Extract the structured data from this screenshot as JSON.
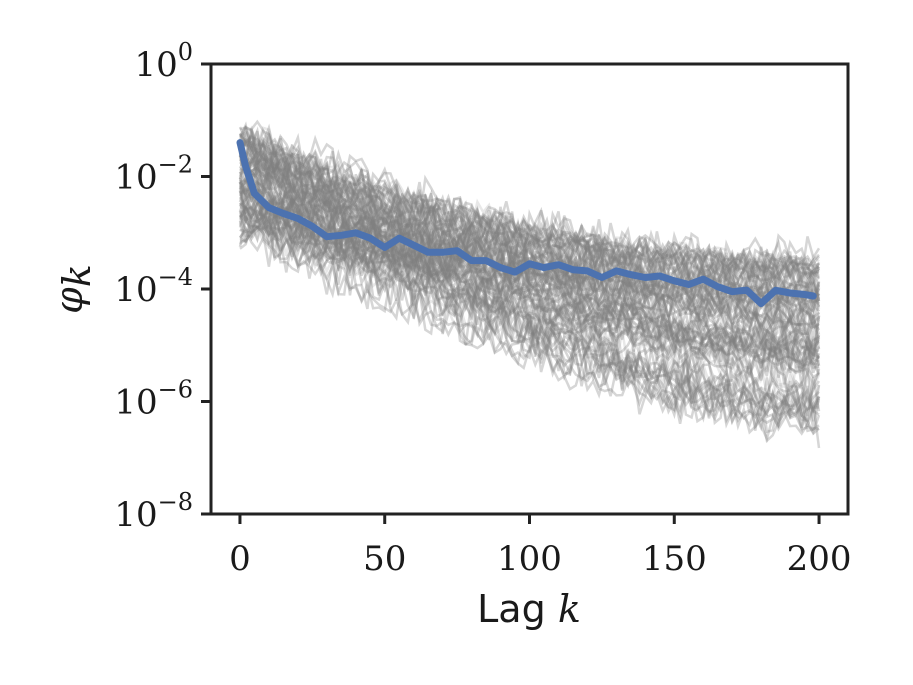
{
  "chart_data": {
    "type": "line",
    "title": "",
    "xlabel": "Lag k",
    "ylabel": "φk",
    "xlim": [
      -10,
      210
    ],
    "ylim_log10": [
      -8,
      0
    ],
    "yscale": "log",
    "x_ticks": [
      0,
      50,
      100,
      150,
      200
    ],
    "x_tick_labels": [
      "0",
      "50",
      "100",
      "150",
      "200"
    ],
    "y_ticks_log10": [
      0,
      -2,
      -4,
      -6,
      -8
    ],
    "y_tick_labels": [
      {
        "base": "10",
        "exp": "0"
      },
      {
        "base": "10",
        "exp": "−2"
      },
      {
        "base": "10",
        "exp": "−4"
      },
      {
        "base": "10",
        "exp": "−6"
      },
      {
        "base": "10",
        "exp": "−8"
      }
    ],
    "grid": false,
    "colors": {
      "mean_line": "#4c72b0",
      "sample_lines": "#808080",
      "axes": "#222222"
    },
    "series": [
      {
        "role": "mean",
        "x": [
          0,
          2,
          5,
          10,
          15,
          20,
          25,
          30,
          35,
          40,
          45,
          50,
          55,
          60,
          65,
          70,
          75,
          80,
          85,
          90,
          95,
          100,
          105,
          110,
          115,
          120,
          125,
          130,
          135,
          140,
          145,
          150,
          155,
          160,
          165,
          170,
          175,
          180,
          185,
          190,
          195,
          198
        ],
        "y": [
          0.04,
          0.015,
          0.005,
          0.0028,
          0.0022,
          0.0018,
          0.0013,
          0.00085,
          0.0009,
          0.001,
          0.0008,
          0.00055,
          0.0008,
          0.0006,
          0.00045,
          0.00045,
          0.00048,
          0.00032,
          0.00032,
          0.00024,
          0.0002,
          0.00028,
          0.00024,
          0.00027,
          0.00022,
          0.00021,
          0.00016,
          0.00021,
          0.00018,
          0.00016,
          0.00017,
          0.00014,
          0.00012,
          0.00015,
          0.00011,
          8.95e-05,
          9.55e-05,
          5.5e-05,
          9.5e-05,
          8.5e-05,
          8e-05,
          7.5e-05
        ]
      },
      {
        "role": "samples",
        "count": 100,
        "x_start": 0,
        "x_end": 200,
        "y_start_range": [
          0.001,
          0.06
        ],
        "y_end_range": [
          2.5e-07,
          0.00035
        ]
      }
    ]
  }
}
